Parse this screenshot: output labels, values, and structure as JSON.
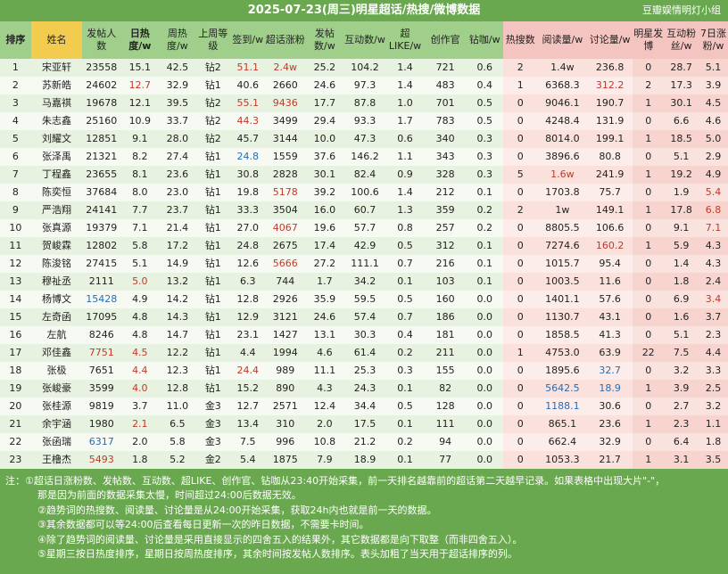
{
  "title": "2025-07-23(周三)明星超话/热搜/微博数据",
  "watermark": "豆瓣娱情明灯小组",
  "headers": [
    "排序",
    "姓名",
    "发帖人数",
    "日热度/w",
    "周热度/w",
    "上周等级",
    "签到/w",
    "超话涨粉",
    "发帖数/w",
    "互动数/w",
    "超LIKE/w",
    "创作官",
    "钻咖/w",
    "热搜数",
    "阅读量/w",
    "讨论量/w",
    "明星发博",
    "互动粉丝/w",
    "7日涨粉/w"
  ],
  "rows": [
    [
      "1",
      "宋亚轩",
      "23558",
      "15.1",
      "42.5",
      "钻2",
      "51.1",
      "2.4w",
      "25.2",
      "104.2",
      "1.4",
      "721",
      "0.6",
      "2",
      "1.4w",
      "236.8",
      "0",
      "28.7",
      "5.1"
    ],
    [
      "2",
      "苏新皓",
      "24602",
      "12.7",
      "32.9",
      "钻1",
      "40.6",
      "2660",
      "24.6",
      "97.3",
      "1.4",
      "483",
      "0.4",
      "1",
      "6368.3",
      "312.2",
      "2",
      "17.3",
      "3.9"
    ],
    [
      "3",
      "马嘉祺",
      "19678",
      "12.1",
      "39.5",
      "钻2",
      "55.1",
      "9436",
      "17.7",
      "87.8",
      "1.0",
      "701",
      "0.5",
      "0",
      "9046.1",
      "190.7",
      "1",
      "30.1",
      "4.5"
    ],
    [
      "4",
      "朱志鑫",
      "25160",
      "10.9",
      "33.7",
      "钻2",
      "44.3",
      "3499",
      "29.4",
      "93.3",
      "1.7",
      "783",
      "0.5",
      "0",
      "4248.4",
      "131.9",
      "0",
      "6.6",
      "4.6"
    ],
    [
      "5",
      "刘耀文",
      "12851",
      "9.1",
      "28.0",
      "钻2",
      "45.7",
      "3144",
      "10.0",
      "47.3",
      "0.6",
      "340",
      "0.3",
      "0",
      "8014.0",
      "199.1",
      "1",
      "18.5",
      "5.0"
    ],
    [
      "6",
      "张泽禹",
      "21321",
      "8.2",
      "27.4",
      "钻1",
      "24.8",
      "1559",
      "37.6",
      "146.2",
      "1.1",
      "343",
      "0.3",
      "0",
      "3896.6",
      "80.8",
      "0",
      "5.1",
      "2.9"
    ],
    [
      "7",
      "丁程鑫",
      "23655",
      "8.1",
      "23.6",
      "钻1",
      "30.8",
      "2828",
      "30.1",
      "82.4",
      "0.9",
      "328",
      "0.3",
      "5",
      "1.6w",
      "241.9",
      "1",
      "19.2",
      "4.9"
    ],
    [
      "8",
      "陈奕恒",
      "37684",
      "8.0",
      "23.0",
      "钻1",
      "19.8",
      "5178",
      "39.2",
      "100.6",
      "1.4",
      "212",
      "0.1",
      "0",
      "1703.8",
      "75.7",
      "0",
      "1.9",
      "5.4"
    ],
    [
      "9",
      "严浩翔",
      "24141",
      "7.7",
      "23.7",
      "钻1",
      "33.3",
      "3504",
      "16.0",
      "60.7",
      "1.3",
      "359",
      "0.2",
      "2",
      "1w",
      "149.1",
      "1",
      "17.8",
      "6.8"
    ],
    [
      "10",
      "张真源",
      "19379",
      "7.1",
      "21.4",
      "钻1",
      "27.0",
      "4067",
      "19.6",
      "57.7",
      "0.8",
      "257",
      "0.2",
      "0",
      "8805.5",
      "106.6",
      "0",
      "9.1",
      "7.1"
    ],
    [
      "11",
      "贺峻霖",
      "12802",
      "5.8",
      "17.2",
      "钻1",
      "24.8",
      "2675",
      "17.4",
      "42.9",
      "0.5",
      "312",
      "0.1",
      "0",
      "7274.6",
      "160.2",
      "1",
      "5.9",
      "4.3"
    ],
    [
      "12",
      "陈浚铭",
      "27415",
      "5.1",
      "14.9",
      "钻1",
      "12.6",
      "5666",
      "27.2",
      "111.1",
      "0.7",
      "216",
      "0.1",
      "0",
      "1015.7",
      "95.4",
      "0",
      "1.4",
      "4.3"
    ],
    [
      "13",
      "穆祉丞",
      "2111",
      "5.0",
      "13.2",
      "钻1",
      "6.3",
      "744",
      "1.7",
      "34.2",
      "0.1",
      "103",
      "0.1",
      "0",
      "1003.5",
      "11.6",
      "0",
      "1.8",
      "2.4"
    ],
    [
      "14",
      "杨博文",
      "15428",
      "4.9",
      "14.2",
      "钻1",
      "12.8",
      "2926",
      "35.9",
      "59.5",
      "0.5",
      "160",
      "0.0",
      "0",
      "1401.1",
      "57.6",
      "0",
      "6.9",
      "3.4"
    ],
    [
      "15",
      "左奇函",
      "17095",
      "4.8",
      "14.3",
      "钻1",
      "12.9",
      "3121",
      "24.6",
      "57.4",
      "0.7",
      "186",
      "0.0",
      "0",
      "1130.7",
      "43.1",
      "0",
      "1.6",
      "3.7"
    ],
    [
      "16",
      "左航",
      "8246",
      "4.8",
      "14.7",
      "钻1",
      "23.1",
      "1427",
      "13.1",
      "30.3",
      "0.4",
      "181",
      "0.0",
      "0",
      "1858.5",
      "41.3",
      "0",
      "5.1",
      "2.3"
    ],
    [
      "17",
      "邓佳鑫",
      "7751",
      "4.5",
      "12.2",
      "钻1",
      "4.4",
      "1994",
      "4.6",
      "61.4",
      "0.2",
      "211",
      "0.0",
      "1",
      "4753.0",
      "63.9",
      "22",
      "7.5",
      "4.4"
    ],
    [
      "18",
      "张极",
      "7651",
      "4.4",
      "12.3",
      "钻1",
      "24.4",
      "989",
      "11.1",
      "25.3",
      "0.3",
      "155",
      "0.0",
      "0",
      "1895.6",
      "32.7",
      "0",
      "3.2",
      "3.3"
    ],
    [
      "19",
      "张峻豪",
      "3599",
      "4.0",
      "12.8",
      "钻1",
      "15.2",
      "890",
      "4.3",
      "24.3",
      "0.1",
      "82",
      "0.0",
      "0",
      "5642.5",
      "18.9",
      "1",
      "3.9",
      "2.5"
    ],
    [
      "20",
      "张桂源",
      "9819",
      "3.7",
      "11.0",
      "金3",
      "12.7",
      "2571",
      "12.4",
      "34.4",
      "0.5",
      "128",
      "0.0",
      "0",
      "1188.1",
      "30.6",
      "0",
      "2.7",
      "3.2"
    ],
    [
      "21",
      "余宇涵",
      "1980",
      "2.1",
      "6.5",
      "金3",
      "13.4",
      "310",
      "2.0",
      "17.5",
      "0.1",
      "111",
      "0.0",
      "0",
      "865.1",
      "23.6",
      "1",
      "2.3",
      "1.1"
    ],
    [
      "22",
      "张函瑞",
      "6317",
      "2.0",
      "5.8",
      "金3",
      "7.5",
      "996",
      "10.8",
      "21.2",
      "0.2",
      "94",
      "0.0",
      "0",
      "662.4",
      "32.9",
      "0",
      "6.4",
      "1.8"
    ],
    [
      "23",
      "王橹杰",
      "5493",
      "1.8",
      "5.2",
      "金2",
      "5.4",
      "1875",
      "7.9",
      "18.9",
      "0.1",
      "77",
      "0.0",
      "0",
      "1053.3",
      "21.7",
      "1",
      "3.1",
      "3.5"
    ]
  ],
  "colors": {
    "accent": "#6aa84f",
    "red": "#c0392b",
    "blue": "#2a6cb0"
  },
  "highlights": {
    "red": [
      "0-6",
      "0-7",
      "1-3",
      "1-15",
      "2-6",
      "2-7",
      "3-6",
      "6-14",
      "7-7",
      "7-18",
      "8-18",
      "9-7",
      "9-18",
      "10-15",
      "11-7",
      "12-3",
      "13-18",
      "16-2",
      "16-3",
      "17-3",
      "17-6",
      "18-3",
      "20-3",
      "22-2"
    ],
    "blue": [
      "5-6",
      "13-2",
      "17-15",
      "18-14",
      "18-15",
      "19-14",
      "21-2"
    ]
  },
  "notes": [
    "注：①超话日涨粉数、发帖数、互动数、超LIKE、创作官、钻咖从23:40开始采集，前一天排名越靠前的超话第二天越早记录。如果表格中出现大片\"-\"，",
    "那是因为前面的数据采集太慢，时间超过24:00后数据无效。",
    "②趋势词的热搜数、阅读量、讨论量是从24:00开始采集，获取24h内也就是前一天的数据。",
    "③其余数据都可以等24:00后查看每日更新一次的昨日数据，不需要卡时间。",
    "④除了趋势词的阅读量、讨论量是采用直接显示的四舍五入的结果外，其它数据都是向下取整（而非四舍五入）。",
    "⑤星期三按日热度排序，星期日按周热度排序，其余时间按发帖人数排序。表头加粗了当天用于超话排序的列。"
  ]
}
